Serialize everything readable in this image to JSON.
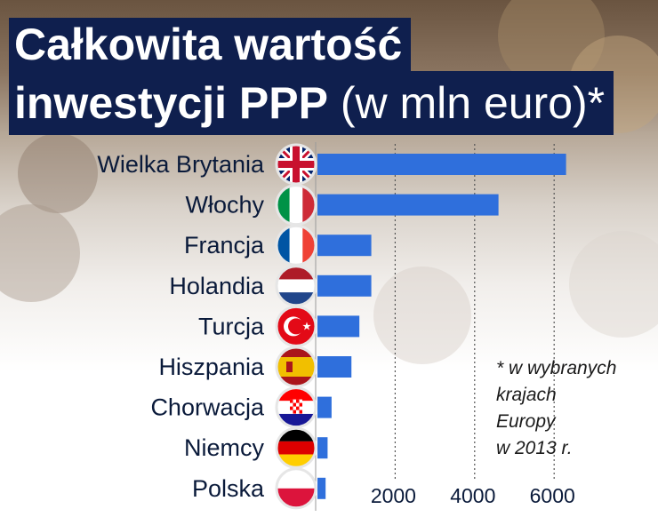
{
  "title": {
    "line1": "Całkowita wartość",
    "line2_bold": "inwestycji PPP",
    "line2_rest": " (w mln euro)*"
  },
  "note": "* w wybranych\nkrajach\nEuropy\nw 2013 r.",
  "colors": {
    "bar": "#2f6fdc",
    "title_bg": "#0f1f4e",
    "title_text": "#ffffff",
    "label_text": "#0a1a3a"
  },
  "chart_data": {
    "type": "bar",
    "orientation": "horizontal",
    "categories": [
      "Wielka Brytania",
      "Włochy",
      "Francja",
      "Holandia",
      "Turcja",
      "Hiszpania",
      "Chorwacja",
      "Niemcy",
      "Polska"
    ],
    "flag_icons": [
      "uk-flag-icon",
      "italy-flag-icon",
      "france-flag-icon",
      "netherlands-flag-icon",
      "turkey-flag-icon",
      "spain-flag-icon",
      "croatia-flag-icon",
      "germany-flag-icon",
      "poland-flag-icon"
    ],
    "values": [
      6300,
      4600,
      1400,
      1400,
      1100,
      900,
      400,
      300,
      250
    ],
    "xticks": [
      2000,
      4000,
      6000
    ],
    "xlim": [
      0,
      7000
    ],
    "grid": "vertical dotted"
  }
}
